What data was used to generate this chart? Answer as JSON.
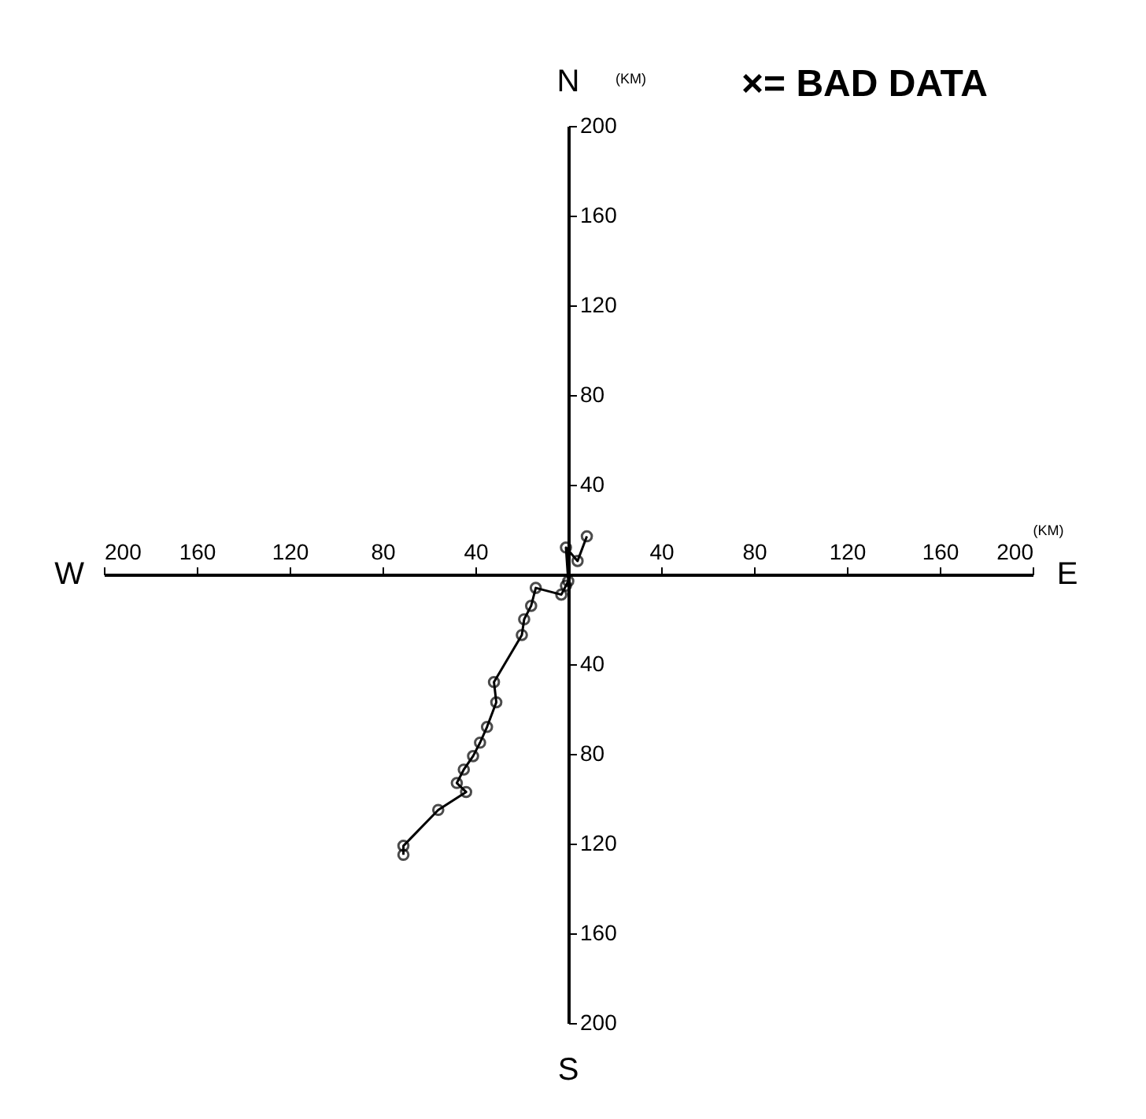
{
  "chart_data": {
    "type": "line",
    "marker": "circle",
    "grid": false,
    "x": [
      8,
      4,
      -1,
      0,
      -1,
      -3,
      -14,
      -16,
      -19,
      -20,
      -32,
      -31,
      -35,
      -38,
      -41,
      -45,
      -48,
      -44,
      -56,
      -71,
      -71
    ],
    "series": [
      {
        "color": "#000000",
        "values": [
          17,
          6,
          12,
          -3,
          -5,
          -9,
          -6,
          -14,
          -20,
          -27,
          -48,
          -57,
          -68,
          -75,
          -81,
          -87,
          -93,
          -97,
          -105,
          -121,
          -125
        ]
      }
    ],
    "xlim": [
      -200,
      200
    ],
    "ylim": [
      -200,
      200
    ],
    "xticks": [
      {
        "value": -200,
        "label": "200"
      },
      {
        "value": -160,
        "label": "160"
      },
      {
        "value": -120,
        "label": "120"
      },
      {
        "value": -80,
        "label": "80"
      },
      {
        "value": -40,
        "label": "40"
      },
      40,
      80,
      120,
      160,
      200
    ],
    "yticks": [
      {
        "value": -200,
        "label": "200"
      },
      {
        "value": -160,
        "label": "160"
      },
      {
        "value": -120,
        "label": "120"
      },
      {
        "value": -80,
        "label": "80"
      },
      {
        "value": -40,
        "label": "40"
      },
      40,
      80,
      120,
      160,
      200
    ],
    "annotations": [
      "N",
      "S",
      "E",
      "W",
      "(KM)",
      "(KM)",
      "×= BAD DATA"
    ]
  }
}
